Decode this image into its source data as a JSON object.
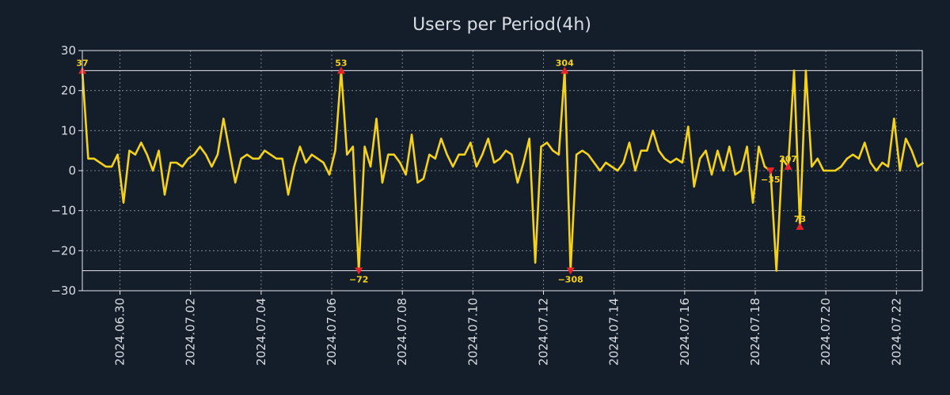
{
  "chart_data": {
    "type": "line",
    "title": "Users per Period(4h)",
    "xlabel": "",
    "ylabel": "",
    "ylim": [
      -30,
      30
    ],
    "xlim": [
      -6.4,
      136.4
    ],
    "y_ticks": [
      30,
      20,
      10,
      0,
      -10,
      -20,
      -30
    ],
    "y_tick_labels": [
      "30",
      "20",
      "10",
      "0",
      "−10",
      "−20",
      "−30"
    ],
    "x_ticks": [
      {
        "label": "2024.06.30",
        "x": 0
      },
      {
        "label": "2024.07.02",
        "x": 12
      },
      {
        "label": "2024.07.04",
        "x": 24
      },
      {
        "label": "2024.07.06",
        "x": 36
      },
      {
        "label": "2024.07.08",
        "x": 48
      },
      {
        "label": "2024.07.10",
        "x": 60
      },
      {
        "label": "2024.07.12",
        "x": 72
      },
      {
        "label": "2024.07.14",
        "x": 84
      },
      {
        "label": "2024.07.16",
        "x": 96
      },
      {
        "label": "2024.07.18",
        "x": 108
      },
      {
        "label": "2024.07.20",
        "x": 120
      },
      {
        "label": "2024.07.22",
        "x": 132
      }
    ],
    "x_start": -6.4,
    "x_step": 1,
    "clip": [
      -25,
      25
    ],
    "series": [
      {
        "name": "Users",
        "color": "#f5d21a",
        "values": [
          25,
          3,
          3,
          2,
          1,
          1,
          4,
          -8,
          5,
          4,
          7,
          4,
          0,
          5,
          -6,
          2,
          2,
          1,
          3,
          4,
          6,
          4,
          1,
          4,
          13,
          5,
          -3,
          3,
          4,
          3,
          3,
          5,
          4,
          3,
          3,
          -6,
          1,
          6,
          2,
          4,
          3,
          2,
          -1,
          5,
          25,
          4,
          6,
          -25,
          6,
          1,
          13,
          -3,
          4,
          4,
          2,
          -1,
          9,
          -3,
          -2,
          4,
          3,
          8,
          4,
          1,
          4,
          4,
          7,
          1,
          4,
          8,
          2,
          3,
          5,
          4,
          -3,
          2,
          8,
          -23,
          6,
          7,
          5,
          4,
          25,
          -25,
          4,
          5,
          4,
          2,
          0,
          2,
          1,
          0,
          2,
          7,
          0,
          5,
          5,
          10,
          5,
          3,
          2,
          3,
          2,
          11,
          -4,
          3,
          5,
          -1,
          5,
          0,
          6,
          -1,
          0,
          6,
          -8,
          6,
          1,
          0,
          -25,
          3,
          1,
          25,
          -14,
          25,
          1,
          3,
          0,
          0,
          0,
          1,
          3,
          4,
          3,
          7,
          2,
          0,
          2,
          1,
          13,
          0,
          8,
          5,
          1,
          2
        ]
      }
    ],
    "annotations": [
      {
        "label": "37",
        "index": 0,
        "kind": "high"
      },
      {
        "label": "53",
        "index": 44,
        "kind": "high"
      },
      {
        "label": "−72",
        "index": 47,
        "kind": "low"
      },
      {
        "label": "304",
        "index": 82,
        "kind": "high"
      },
      {
        "label": "−308",
        "index": 83,
        "kind": "low"
      },
      {
        "label": "−35",
        "index": 117,
        "kind": "low"
      },
      {
        "label": "207",
        "index": 120,
        "kind": "high"
      },
      {
        "label": "73",
        "index": 122,
        "kind": "high"
      }
    ],
    "reference_lines": [
      25,
      -25
    ],
    "grid": true,
    "colors": {
      "background": "#141e2b",
      "line": "#f5d21a",
      "marker": "#e8242a",
      "text": "#d9dde3",
      "grid": "#c8ccd2"
    }
  }
}
